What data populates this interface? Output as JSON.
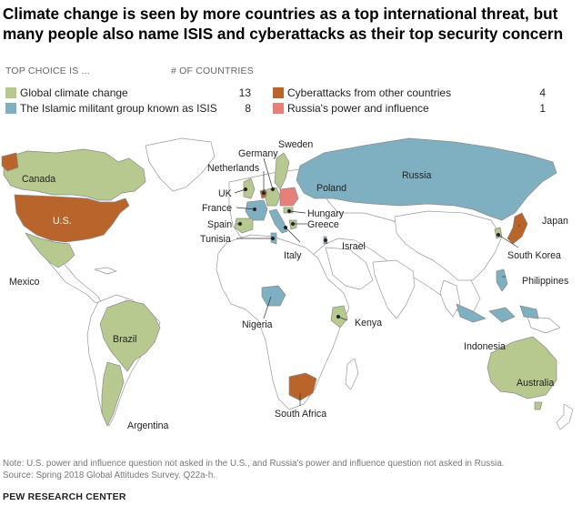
{
  "title": "Climate change is seen by more countries as a top international threat, but many people also name ISIS and cyberattacks as their top security concern",
  "legend": {
    "head_choice": "TOP CHOICE IS ...",
    "head_count": "# OF COUNTRIES",
    "items": [
      {
        "label": "Global climate change",
        "count": "13",
        "color": "#b8c98f"
      },
      {
        "label": "The Islamic militant group known as ISIS",
        "count": "8",
        "color": "#7fb0c2"
      },
      {
        "label": "Cyberattacks from other countries",
        "count": "4",
        "color": "#b8642a"
      },
      {
        "label": "Russia's power and influence",
        "count": "1",
        "color": "#e8807a"
      }
    ]
  },
  "map": {
    "land_color": "#ffffff",
    "border_color": "#9a9a9a",
    "ocean_color": "#ffffff",
    "countries": [
      {
        "name": "Canada",
        "category": "climate"
      },
      {
        "name": "U.S.",
        "category": "cyber"
      },
      {
        "name": "Mexico",
        "category": "climate"
      },
      {
        "name": "Brazil",
        "category": "climate"
      },
      {
        "name": "Argentina",
        "category": "climate"
      },
      {
        "name": "Sweden",
        "category": "climate"
      },
      {
        "name": "Germany",
        "category": "climate"
      },
      {
        "name": "Netherlands",
        "category": "cyber"
      },
      {
        "name": "UK",
        "category": "climate"
      },
      {
        "name": "France",
        "category": "isis"
      },
      {
        "name": "Spain",
        "category": "climate"
      },
      {
        "name": "Tunisia",
        "category": "isis"
      },
      {
        "name": "Italy",
        "category": "isis"
      },
      {
        "name": "Greece",
        "category": "climate"
      },
      {
        "name": "Hungary",
        "category": "climate"
      },
      {
        "name": "Poland",
        "category": "russia"
      },
      {
        "name": "Russia",
        "category": "isis"
      },
      {
        "name": "Israel",
        "category": "isis"
      },
      {
        "name": "Nigeria",
        "category": "isis"
      },
      {
        "name": "Kenya",
        "category": "climate"
      },
      {
        "name": "South Africa",
        "category": "cyber"
      },
      {
        "name": "Japan",
        "category": "cyber"
      },
      {
        "name": "South Korea",
        "category": "climate"
      },
      {
        "name": "Philippines",
        "category": "isis"
      },
      {
        "name": "Indonesia",
        "category": "isis"
      },
      {
        "name": "Australia",
        "category": "climate"
      }
    ]
  },
  "note": "Note: U.S. power and influence question not asked in the U.S., and Russia's power and influence question not asked in Russia.",
  "source": "Source: Spring 2018 Global Attitudes Survey. Q22a-h.",
  "brand": "PEW RESEARCH CENTER"
}
